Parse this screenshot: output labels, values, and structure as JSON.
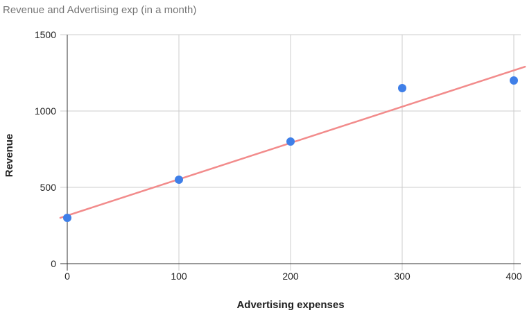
{
  "chart_data": {
    "type": "scatter",
    "title": "Revenue and Advertising exp (in a month)",
    "xlabel": "Advertising expenses",
    "ylabel": "Revenue",
    "xlim": [
      0,
      400
    ],
    "ylim": [
      0,
      1500
    ],
    "x_ticks": [
      "0",
      "100",
      "200",
      "300",
      "400"
    ],
    "y_ticks": [
      "0",
      "500",
      "1000",
      "1500"
    ],
    "grid": true,
    "legend": "none",
    "series": [
      {
        "x": [
          0,
          100,
          200,
          300,
          400
        ],
        "y": [
          300,
          550,
          800,
          1150,
          1200
        ],
        "color": "#3f7fe8"
      }
    ],
    "trendline": {
      "type": "linear",
      "color": "#f28b8b",
      "x": [
        0,
        410
      ],
      "y": [
        315,
        1290
      ]
    }
  }
}
